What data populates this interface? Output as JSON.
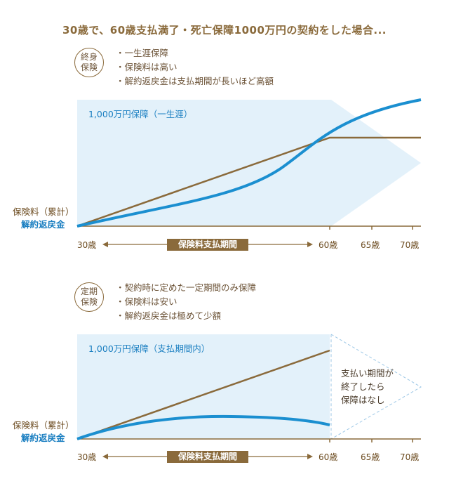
{
  "title": "30歳で、60歳支払満了・死亡保障1000万円の契約をした場合...",
  "sections": [
    {
      "badge": [
        "終身",
        "保険"
      ],
      "bullets": [
        "一生涯保障",
        "保険料は高い",
        "解約返戻金は支払期間が長いほど高額"
      ],
      "coverage_label": "1,000万円保障（一生涯）",
      "premium_label": "保険料（累計）",
      "surrender_label": "解約返戻金",
      "band_label": "保険料支払期間",
      "ticks": [
        "30歳",
        "60歳",
        "65歳",
        "70歳"
      ]
    },
    {
      "badge": [
        "定期",
        "保険"
      ],
      "bullets": [
        "契約時に定めた一定期間のみ保障",
        "保険料は安い",
        "解約返戻金は極めて少額"
      ],
      "coverage_label": "1,000万円保障（支払期間内）",
      "after_note": [
        "支払い期間が",
        "終了したら",
        "保障はなし"
      ],
      "premium_label": "保険料（累計）",
      "surrender_label": "解約返戻金",
      "band_label": "保険料支払期間",
      "ticks": [
        "30歳",
        "60歳",
        "65歳",
        "70歳"
      ]
    }
  ],
  "colors": {
    "brown": "#8a6a3b",
    "blue": "#1b8fd0",
    "fill": "#e3f1fa"
  }
}
